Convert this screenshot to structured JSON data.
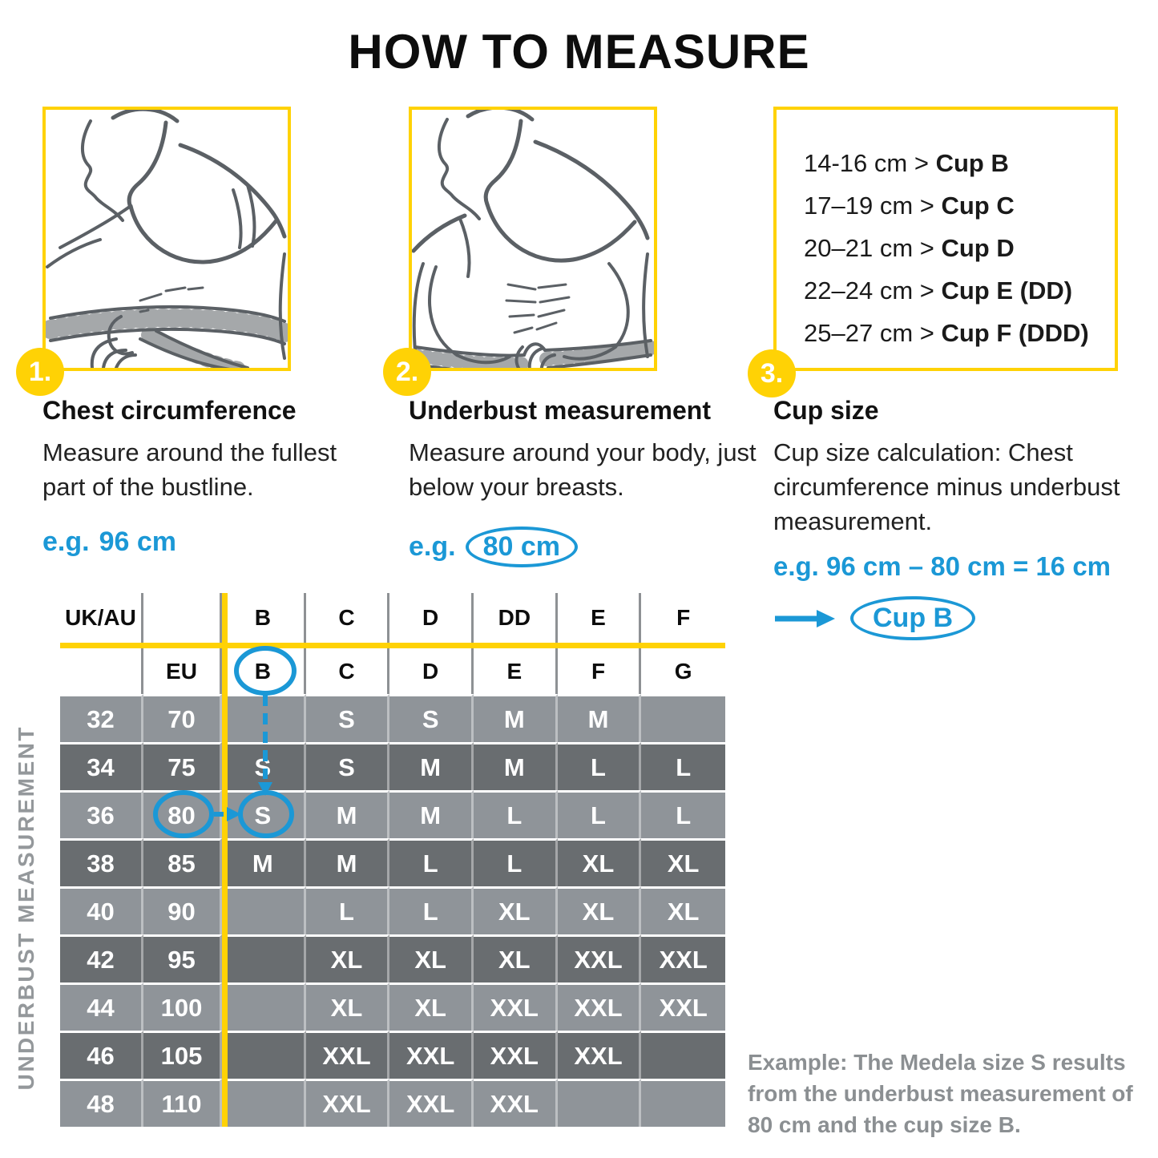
{
  "title": "HOW TO MEASURE",
  "steps": [
    {
      "number": "1.",
      "heading": "Chest circumference",
      "body": "Measure around the fullest part of the bustline.",
      "example_prefix": "e.g.",
      "example_value": "96 cm"
    },
    {
      "number": "2.",
      "heading": "Underbust measurement",
      "body": "Measure around your body, just below your breasts.",
      "example_prefix": "e.g.",
      "example_value": "80 cm"
    },
    {
      "number": "3.",
      "heading": "Cup size",
      "body": "Cup size calculation: Chest circumference minus underbust measurement.",
      "example_equation": "e.g. 96 cm – 80 cm = 16 cm",
      "result_label": "Cup B"
    }
  ],
  "cup_chart": {
    "separator": ">",
    "items": [
      {
        "range": "14-16 cm",
        "cup": "Cup B"
      },
      {
        "range": "17–19 cm",
        "cup": "Cup C"
      },
      {
        "range": "20–21 cm",
        "cup": "Cup D"
      },
      {
        "range": "22–24 cm",
        "cup": "Cup E (DD)"
      },
      {
        "range": "25–27 cm",
        "cup": "Cup F (DDD)"
      }
    ]
  },
  "size_table": {
    "left_axis_label": "UNDERBUST MEASUREMENT",
    "header_row_1": [
      "UK/AU",
      "",
      "B",
      "C",
      "D",
      "DD",
      "E",
      "F"
    ],
    "header_row_2": [
      "",
      "EU",
      "B",
      "C",
      "D",
      "E",
      "F",
      "G"
    ],
    "rows": [
      {
        "uk": "32",
        "eu": "70",
        "sizes": [
          "",
          "S",
          "S",
          "M",
          "M",
          ""
        ]
      },
      {
        "uk": "34",
        "eu": "75",
        "sizes": [
          "S",
          "S",
          "M",
          "M",
          "L",
          "L"
        ]
      },
      {
        "uk": "36",
        "eu": "80",
        "sizes": [
          "S",
          "M",
          "M",
          "L",
          "L",
          "L"
        ]
      },
      {
        "uk": "38",
        "eu": "85",
        "sizes": [
          "M",
          "M",
          "L",
          "L",
          "XL",
          "XL"
        ]
      },
      {
        "uk": "40",
        "eu": "90",
        "sizes": [
          "",
          "L",
          "L",
          "XL",
          "XL",
          "XL"
        ]
      },
      {
        "uk": "42",
        "eu": "95",
        "sizes": [
          "",
          "XL",
          "XL",
          "XL",
          "XXL",
          "XXL"
        ]
      },
      {
        "uk": "44",
        "eu": "100",
        "sizes": [
          "",
          "XL",
          "XL",
          "XXL",
          "XXL",
          "XXL"
        ]
      },
      {
        "uk": "46",
        "eu": "105",
        "sizes": [
          "",
          "XXL",
          "XXL",
          "XXL",
          "XXL",
          ""
        ]
      },
      {
        "uk": "48",
        "eu": "110",
        "sizes": [
          "",
          "XXL",
          "XXL",
          "XXL",
          "",
          ""
        ]
      }
    ],
    "highlighted": {
      "eu_value": "80",
      "header_cup": "B",
      "result_size": "S"
    }
  },
  "example_note": "Example: The Medela size S results from the underbust measurement of 80 cm and the cup size B.",
  "colors": {
    "yellow": "#FFD205",
    "blue": "#1B98D6",
    "row-light": "#8F9499",
    "row-dark": "#696D70",
    "note-gray": "#8B8F92",
    "sketch": "#5B6065"
  }
}
